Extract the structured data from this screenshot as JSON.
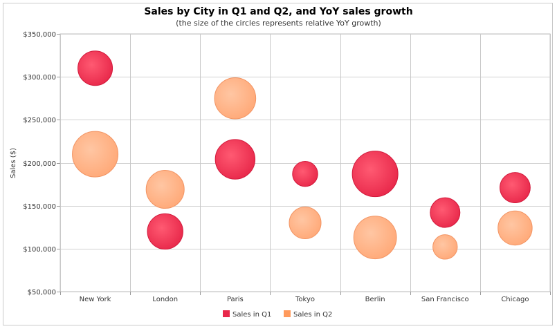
{
  "chart_data": {
    "type": "bubble",
    "title": "Sales by City in Q1 and Q2, and YoY sales growth",
    "subtitle": "(the size of the circles represents relative YoY growth)",
    "xlabel": "",
    "ylabel": "Sales ($)",
    "categories": [
      "New York",
      "London",
      "Paris",
      "Tokyo",
      "Berlin",
      "San Francisco",
      "Chicago"
    ],
    "ylim": [
      50000,
      350000
    ],
    "yticks": [
      50000,
      100000,
      150000,
      200000,
      250000,
      300000,
      350000
    ],
    "ytick_labels": [
      "$50,000",
      "$100,000",
      "$150,000",
      "$200,000",
      "$250,000",
      "$300,000",
      "$350,000"
    ],
    "grid": true,
    "legend_position": "bottom",
    "series": [
      {
        "name": "Sales in Q1",
        "color": "#e8284a",
        "values": [
          310000,
          120000,
          204000,
          187000,
          187000,
          142000,
          171000
        ],
        "sizes": [
          1.9,
          2.0,
          2.5,
          1.0,
          3.3,
          1.4,
          1.45
        ]
      },
      {
        "name": "Sales in Q2",
        "color": "#ffa978",
        "values": [
          210000,
          169000,
          275000,
          130000,
          113000,
          102000,
          124000
        ],
        "sizes": [
          3.3,
          2.3,
          2.7,
          1.6,
          2.9,
          0.95,
          1.85
        ]
      }
    ]
  }
}
